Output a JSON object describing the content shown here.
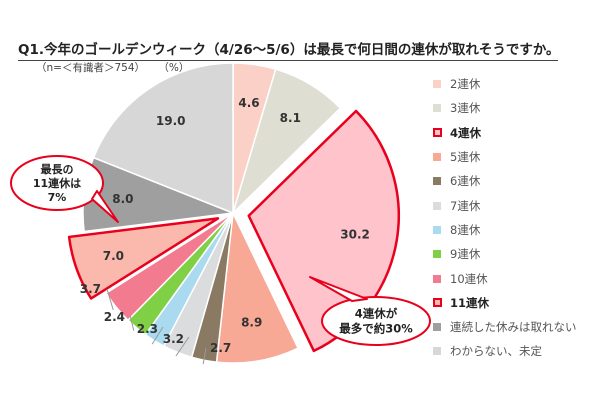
{
  "title": "Q1.今年のゴールデンウィーク（4/26～5/6）は最長で何日間の連休が取れそうですか。",
  "sample_label": "（n=＜有識者＞754）",
  "unit_label": "（%）",
  "chart_data": {
    "type": "pie",
    "categories": [
      "2連休",
      "3連休",
      "4連休",
      "5連休",
      "6連休",
      "7連休",
      "8連休",
      "9連休",
      "10連休",
      "11連休",
      "連続した休みは取れない",
      "わからない、未定"
    ],
    "values": [
      4.6,
      8.1,
      30.2,
      8.9,
      2.7,
      3.2,
      2.3,
      2.4,
      3.7,
      7.0,
      8.0,
      19.0
    ],
    "value_labels": [
      "4.6",
      "8.1",
      "30.2",
      "8.9",
      "2.7",
      "3.2",
      "2.3",
      "2.4",
      "3.7",
      "7.0",
      "8.0",
      "19.0"
    ],
    "colors": [
      "#fbd0c7",
      "#deded3",
      "#ffc3cc",
      "#f7a996",
      "#8a7a63",
      "#dadcde",
      "#a9daf0",
      "#80d046",
      "#f27b8f",
      "#fbb9ae",
      "#9f9f9f",
      "#d7d7d7"
    ],
    "highlighted": [
      false,
      false,
      true,
      false,
      false,
      false,
      false,
      false,
      false,
      true,
      false,
      false
    ],
    "highlight_color": "#e8001c",
    "legend_position": "right",
    "start_angle": "top, clockwise"
  },
  "callouts": [
    {
      "lines": [
        "最長の",
        "11連休は",
        "7%"
      ]
    },
    {
      "lines": [
        "4連休が",
        "最多で約30%"
      ]
    }
  ]
}
